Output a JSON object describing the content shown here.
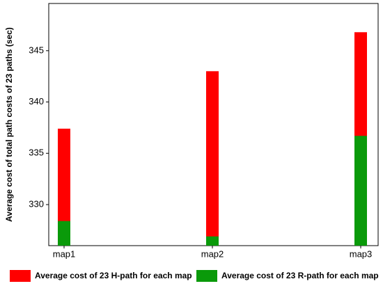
{
  "chart_data": {
    "type": "bar",
    "y_label": "Average cost of total path costs of 23 paths (sec)",
    "categories": [
      "map1",
      "map2",
      "map3"
    ],
    "series": [
      {
        "name": "Average cost of 23 H-path for each map",
        "color": "#ff0000",
        "values": [
          337.4,
          343.0,
          346.8
        ]
      },
      {
        "name": "Average cost of 23 R-path for each map",
        "color": "#0a9a0a",
        "values": [
          328.4,
          326.9,
          336.7
        ]
      }
    ],
    "ylim": [
      326,
      349.6
    ],
    "yticks": [
      330,
      335,
      340,
      345
    ],
    "grid": false
  }
}
